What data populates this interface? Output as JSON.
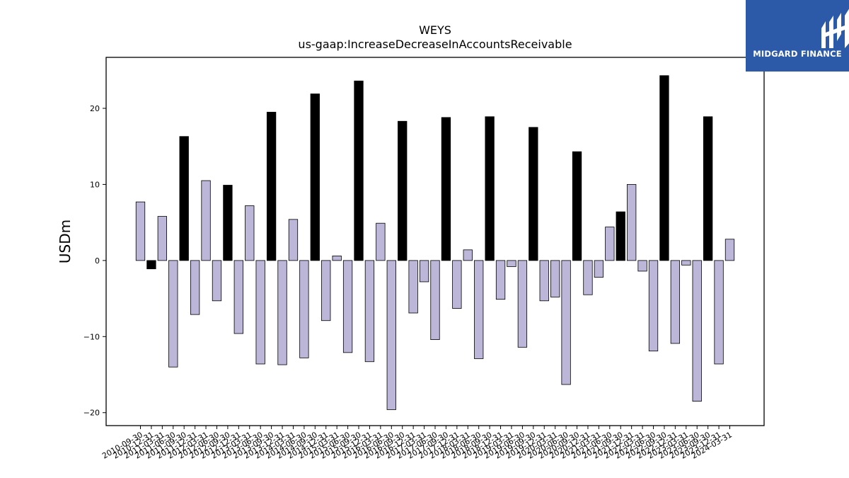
{
  "chart_data": {
    "type": "bar",
    "title": "WEYS",
    "subtitle": "us-gaap:IncreaseDecreaseInAccountsReceivable",
    "ylabel": "USDm",
    "xlabel": "",
    "ylim": [
      -21.7,
      26.7
    ],
    "yticks": [
      -20,
      -10,
      0,
      10,
      20
    ],
    "categories": [
      "2010-09-30",
      "2010-12-31",
      "2011-03-31",
      "2011-06-30",
      "2011-09-30",
      "2011-12-31",
      "2012-03-31",
      "2012-06-30",
      "2012-09-30",
      "2012-12-31",
      "2013-03-31",
      "2013-06-30",
      "2013-09-30",
      "2013-12-31",
      "2014-03-31",
      "2014-06-30",
      "2014-09-30",
      "2014-12-31",
      "2015-03-31",
      "2015-06-30",
      "2015-09-30",
      "2015-12-31",
      "2016-03-31",
      "2016-06-30",
      "2016-09-30",
      "2016-12-31",
      "2017-03-31",
      "2017-06-30",
      "2017-09-30",
      "2017-12-31",
      "2018-03-31",
      "2018-06-30",
      "2018-09-30",
      "2018-12-31",
      "2019-03-31",
      "2019-06-30",
      "2019-09-30",
      "2019-12-31",
      "2020-03-31",
      "2020-06-30",
      "2020-09-30",
      "2020-12-31",
      "2021-03-31",
      "2021-06-30",
      "2021-09-30",
      "2021-12-31",
      "2022-03-31",
      "2022-06-30",
      "2022-09-30",
      "2022-12-31",
      "2023-03-31",
      "2023-06-30",
      "2023-09-30",
      "2023-12-31",
      "2024-03-31"
    ],
    "values": [
      7.7,
      -1.1,
      5.8,
      -14.0,
      16.3,
      -7.1,
      10.5,
      -5.3,
      9.9,
      -9.6,
      7.2,
      -13.6,
      19.5,
      -13.7,
      5.4,
      -12.8,
      21.9,
      -7.9,
      0.6,
      -12.1,
      23.6,
      -13.3,
      4.9,
      -19.6,
      18.3,
      -6.9,
      -2.8,
      -10.4,
      18.8,
      -6.3,
      1.4,
      -12.9,
      18.9,
      -5.1,
      -0.8,
      -11.4,
      17.5,
      -5.3,
      -4.8,
      -16.3,
      14.3,
      -4.5,
      -2.2,
      4.4,
      6.4,
      10.0,
      -1.4,
      -11.9,
      24.3,
      -10.9,
      -0.6,
      -18.5,
      18.9,
      -13.6,
      2.8
    ],
    "highlighted": [
      "2010-12-31",
      "2011-09-30",
      "2012-09-30",
      "2013-09-30",
      "2014-09-30",
      "2015-09-30",
      "2016-09-30",
      "2017-09-30",
      "2018-09-30",
      "2019-09-30",
      "2020-09-30",
      "2021-09-30",
      "2022-09-30",
      "2023-09-30"
    ],
    "colors": {
      "bar": "#bcb6d8",
      "highlight": "#000000",
      "edge": "#000000"
    },
    "grid": false,
    "legend": "none"
  },
  "logo": {
    "text": "MIDGARD FINANCE",
    "background": "#2d5aa8"
  }
}
